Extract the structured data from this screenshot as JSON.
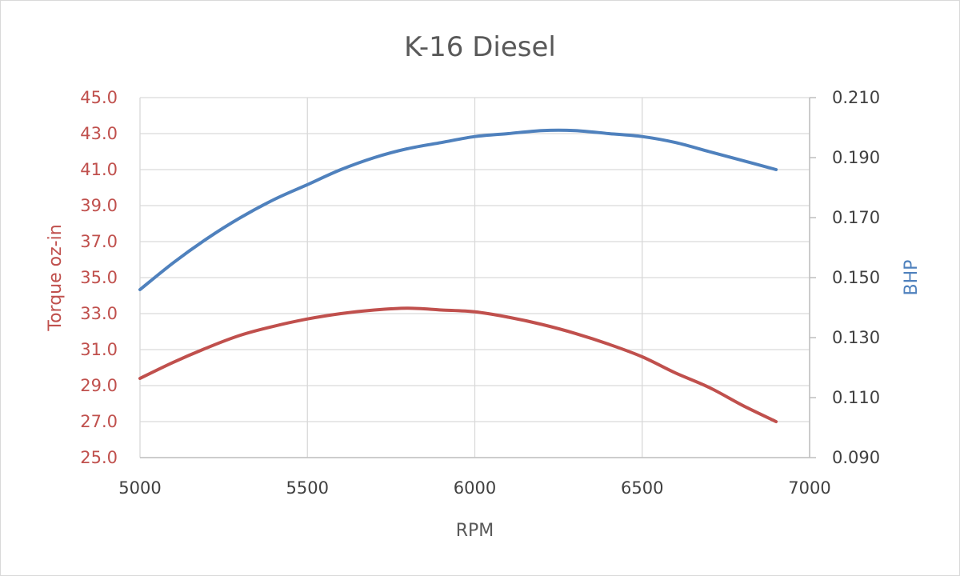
{
  "chart_data": {
    "type": "line",
    "title": "K-16 Diesel",
    "xlabel": "RPM",
    "ylabel_left": "Torque oz-in",
    "ylabel_right": "BHP",
    "xlim": [
      5000,
      7000
    ],
    "x_ticks": [
      "5000",
      "5500",
      "6000",
      "6500",
      "7000"
    ],
    "ylim_left": [
      25.0,
      45.0
    ],
    "y_ticks_left": [
      "25.0",
      "27.0",
      "29.0",
      "31.0",
      "33.0",
      "35.0",
      "37.0",
      "39.0",
      "41.0",
      "43.0",
      "45.0"
    ],
    "ylim_right": [
      0.09,
      0.21
    ],
    "y_ticks_right": [
      "0.090",
      "0.110",
      "0.130",
      "0.150",
      "0.170",
      "0.190",
      "0.210"
    ],
    "grid": true,
    "legend": "none",
    "colors": {
      "torque": "#c0504d",
      "bhp": "#4f81bd"
    },
    "series": [
      {
        "axis": "left",
        "color": "#c0504d",
        "x": [
          5000,
          5100,
          5200,
          5300,
          5400,
          5500,
          5600,
          5700,
          5800,
          5900,
          6000,
          6100,
          6200,
          6300,
          6400,
          6500,
          6600,
          6700,
          6800,
          6900
        ],
        "values": [
          29.4,
          30.3,
          31.1,
          31.8,
          32.3,
          32.7,
          33.0,
          33.2,
          33.3,
          33.2,
          33.1,
          32.8,
          32.4,
          31.9,
          31.3,
          30.6,
          29.7,
          28.9,
          27.9,
          27.0
        ]
      },
      {
        "axis": "right",
        "color": "#4f81bd",
        "x": [
          5000,
          5100,
          5200,
          5300,
          5400,
          5500,
          5600,
          5700,
          5800,
          5900,
          6000,
          6100,
          6200,
          6300,
          6400,
          6500,
          6600,
          6700,
          6800,
          6900
        ],
        "values": [
          0.146,
          0.155,
          0.163,
          0.17,
          0.176,
          0.181,
          0.186,
          0.19,
          0.193,
          0.195,
          0.197,
          0.198,
          0.199,
          0.199,
          0.198,
          0.197,
          0.195,
          0.192,
          0.189,
          0.186
        ]
      }
    ]
  }
}
